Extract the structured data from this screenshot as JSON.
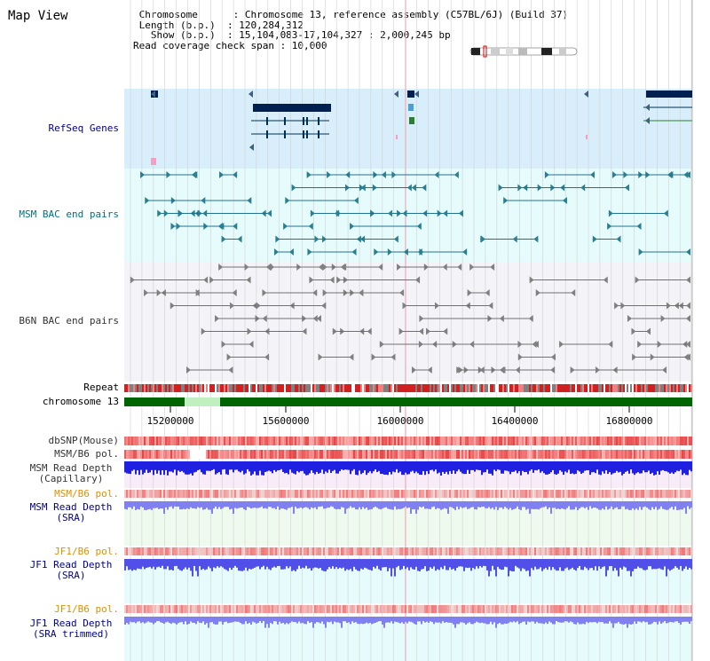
{
  "title": "Map View",
  "info": {
    "line1": " Chromosome      : Chromosome 13, reference assembly (C57BL/6J) (Build 37)",
    "line2": " Length (b.p.)  : 120,284,312",
    "line3": "   Show (b.p.)  : 15,104,083-17,104,327 : 2,000,245 bp",
    "line4": "Read coverage check span : 10,000"
  },
  "tracks": {
    "refseq": "RefSeq Genes",
    "msm_bac": "MSM BAC end pairs",
    "b6n_bac": "B6N BAC end pairs",
    "repeat": "Repeat",
    "chromosome": "chromosome 13",
    "dbsnp": "dbSNP(Mouse)",
    "msm_b6_pol": "MSM/B6 pol.",
    "msm_depth_cap_1": "MSM Read Depth",
    "msm_depth_cap_2": "(Capillary)",
    "msm_b6_pol2": "MSM/B6 pol.",
    "msm_depth_sra_1": "MSM Read Depth",
    "msm_depth_sra_2": "(SRA)",
    "jf1_b6_pol": "JF1/B6 pol.",
    "jf1_depth_sra_1": "JF1 Read Depth",
    "jf1_depth_sra_2": "(SRA)",
    "jf1_b6_pol2": "JF1/B6 pol.",
    "jf1_trim_1": "JF1 Read Depth",
    "jf1_trim_2": "(SRA trimmed)"
  },
  "axis": {
    "ticks": [
      "15200000",
      "15600000",
      "16000000",
      "16400000",
      "16800000"
    ]
  },
  "colors": {
    "refseq_bg": "#d8eefa",
    "msm_bg": "#e6fbfb",
    "b6n_bg": "#f4f4f8",
    "label_blue": "#00008b",
    "label_teal": "#007080",
    "label_orange": "#e09000",
    "chromosome_green": "#006400",
    "depth_blue": "#2020e0"
  }
}
